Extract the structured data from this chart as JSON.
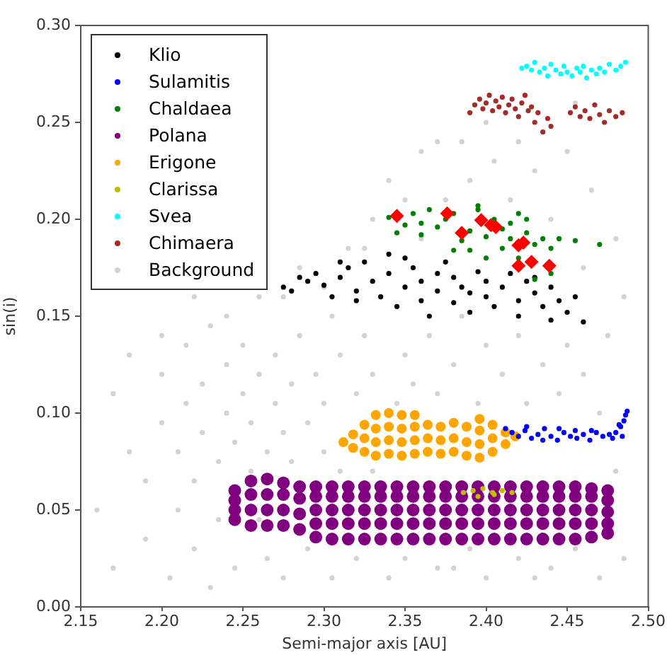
{
  "chart_data": {
    "type": "scatter",
    "xlabel": "Semi-major axis [AU]",
    "ylabel": "sin(i)",
    "xlim": [
      2.15,
      2.5
    ],
    "ylim": [
      0,
      0.3
    ],
    "xticks": [
      2.15,
      {
        "value": 2.2,
        "label": "2.20"
      },
      2.25,
      {
        "value": 2.3,
        "label": "2.30"
      },
      2.35,
      {
        "value": 2.4,
        "label": "2.40"
      },
      2.45,
      {
        "value": 2.5,
        "label": "2.50"
      }
    ],
    "yticks": [
      {
        "value": 0,
        "label": "0.00"
      },
      0.05,
      {
        "value": 0.1,
        "label": "0.10"
      },
      0.15,
      {
        "value": 0.2,
        "label": "0.20"
      },
      0.25,
      {
        "value": 0.3,
        "label": "0.30"
      }
    ],
    "grid": false,
    "legend": "top left",
    "marker": "circle",
    "series": [
      {
        "name": "Klio",
        "color": "#000000",
        "x": [
          2.275,
          2.28,
          2.29,
          2.295,
          2.3,
          2.305,
          2.31,
          2.315,
          2.32,
          2.32,
          2.325,
          2.33,
          2.335,
          2.34,
          2.34,
          2.345,
          2.35,
          2.355,
          2.36,
          2.36,
          2.365,
          2.37,
          2.375,
          2.38,
          2.38,
          2.385,
          2.39,
          2.395,
          2.4,
          2.4,
          2.405,
          2.41,
          2.415,
          2.42,
          2.42,
          2.425,
          2.43,
          2.435,
          2.44,
          2.44,
          2.445,
          2.45,
          2.455,
          2.46,
          2.285,
          2.31,
          2.35,
          2.39,
          2.43,
          2.37
        ],
        "values": [
          0.165,
          0.163,
          0.168,
          0.172,
          0.166,
          0.16,
          0.17,
          0.175,
          0.163,
          0.158,
          0.178,
          0.168,
          0.16,
          0.182,
          0.172,
          0.155,
          0.165,
          0.175,
          0.158,
          0.168,
          0.15,
          0.163,
          0.178,
          0.157,
          0.17,
          0.165,
          0.152,
          0.173,
          0.16,
          0.168,
          0.155,
          0.165,
          0.172,
          0.158,
          0.15,
          0.168,
          0.162,
          0.155,
          0.165,
          0.148,
          0.158,
          0.152,
          0.16,
          0.147,
          0.17,
          0.178,
          0.18,
          0.162,
          0.17,
          0.172
        ]
      },
      {
        "name": "Sulamitis",
        "color": "#0000ff",
        "x": [
          2.412,
          2.416,
          2.42,
          2.424,
          2.428,
          2.432,
          2.436,
          2.44,
          2.444,
          2.448,
          2.452,
          2.456,
          2.46,
          2.464,
          2.468,
          2.472,
          2.476,
          2.48,
          2.483,
          2.485,
          2.486,
          2.487,
          2.484,
          2.425,
          2.445,
          2.465,
          2.478,
          2.435,
          2.455,
          2.482
        ],
        "values": [
          0.092,
          0.09,
          0.088,
          0.091,
          0.087,
          0.089,
          0.092,
          0.088,
          0.086,
          0.09,
          0.088,
          0.087,
          0.089,
          0.086,
          0.09,
          0.088,
          0.089,
          0.09,
          0.093,
          0.096,
          0.099,
          0.101,
          0.088,
          0.093,
          0.092,
          0.091,
          0.087,
          0.086,
          0.091,
          0.094
        ]
      },
      {
        "name": "Chaldaea",
        "color": "#008000",
        "x": [
          2.34,
          2.345,
          2.35,
          2.355,
          2.36,
          2.365,
          2.37,
          2.375,
          2.38,
          2.385,
          2.39,
          2.39,
          2.395,
          2.4,
          2.4,
          2.405,
          2.41,
          2.41,
          2.415,
          2.42,
          2.42,
          2.425,
          2.43,
          2.43,
          2.435,
          2.44,
          2.44,
          2.445,
          2.455,
          2.47,
          2.36,
          2.38,
          2.395,
          2.415,
          2.425
        ],
        "values": [
          0.201,
          0.193,
          0.197,
          0.203,
          0.198,
          0.205,
          0.196,
          0.2,
          0.203,
          0.189,
          0.194,
          0.184,
          0.207,
          0.191,
          0.18,
          0.2,
          0.195,
          0.185,
          0.19,
          0.203,
          0.18,
          0.193,
          0.187,
          0.169,
          0.19,
          0.185,
          0.172,
          0.19,
          0.189,
          0.187,
          0.192,
          0.184,
          0.205,
          0.198,
          0.2
        ]
      },
      {
        "name": "Polana",
        "color": "#800080",
        "x": [
          2.245,
          2.245,
          2.245,
          2.245,
          2.255,
          2.255,
          2.255,
          2.255,
          2.265,
          2.265,
          2.265,
          2.265,
          2.275,
          2.275,
          2.275,
          2.275,
          2.285,
          2.285,
          2.285,
          2.285,
          2.295,
          2.295,
          2.295,
          2.295,
          2.295,
          2.305,
          2.305,
          2.305,
          2.305,
          2.305,
          2.315,
          2.315,
          2.315,
          2.315,
          2.315,
          2.325,
          2.325,
          2.325,
          2.325,
          2.325,
          2.335,
          2.335,
          2.335,
          2.335,
          2.335,
          2.345,
          2.345,
          2.345,
          2.345,
          2.345,
          2.355,
          2.355,
          2.355,
          2.355,
          2.355,
          2.365,
          2.365,
          2.365,
          2.365,
          2.365,
          2.375,
          2.375,
          2.375,
          2.375,
          2.375,
          2.385,
          2.385,
          2.385,
          2.385,
          2.385,
          2.395,
          2.395,
          2.395,
          2.395,
          2.395,
          2.405,
          2.405,
          2.405,
          2.405,
          2.405,
          2.415,
          2.415,
          2.415,
          2.415,
          2.415,
          2.425,
          2.425,
          2.425,
          2.425,
          2.425,
          2.435,
          2.435,
          2.435,
          2.435,
          2.435,
          2.445,
          2.445,
          2.445,
          2.445,
          2.445,
          2.455,
          2.455,
          2.455,
          2.455,
          2.455,
          2.465,
          2.465,
          2.465,
          2.465,
          2.465,
          2.475,
          2.475,
          2.475,
          2.475,
          2.475
        ],
        "values": [
          0.045,
          0.05,
          0.055,
          0.06,
          0.042,
          0.05,
          0.058,
          0.065,
          0.042,
          0.05,
          0.058,
          0.066,
          0.042,
          0.05,
          0.058,
          0.064,
          0.04,
          0.048,
          0.056,
          0.062,
          0.036,
          0.043,
          0.05,
          0.057,
          0.062,
          0.035,
          0.043,
          0.05,
          0.057,
          0.062,
          0.035,
          0.043,
          0.05,
          0.057,
          0.062,
          0.035,
          0.043,
          0.05,
          0.057,
          0.062,
          0.035,
          0.043,
          0.05,
          0.057,
          0.062,
          0.035,
          0.043,
          0.05,
          0.057,
          0.062,
          0.035,
          0.043,
          0.05,
          0.057,
          0.062,
          0.035,
          0.043,
          0.05,
          0.057,
          0.062,
          0.035,
          0.043,
          0.05,
          0.057,
          0.062,
          0.035,
          0.043,
          0.05,
          0.057,
          0.062,
          0.035,
          0.043,
          0.05,
          0.057,
          0.062,
          0.035,
          0.043,
          0.05,
          0.057,
          0.062,
          0.035,
          0.043,
          0.05,
          0.057,
          0.062,
          0.035,
          0.043,
          0.05,
          0.057,
          0.062,
          0.035,
          0.043,
          0.05,
          0.057,
          0.062,
          0.035,
          0.043,
          0.05,
          0.057,
          0.062,
          0.035,
          0.043,
          0.05,
          0.057,
          0.062,
          0.036,
          0.043,
          0.05,
          0.057,
          0.061,
          0.038,
          0.043,
          0.049,
          0.055,
          0.06
        ]
      },
      {
        "name": "Erigone",
        "color": "#ffa500",
        "x": [
          2.312,
          2.318,
          2.318,
          2.325,
          2.325,
          2.325,
          2.332,
          2.332,
          2.332,
          2.332,
          2.34,
          2.34,
          2.34,
          2.34,
          2.348,
          2.348,
          2.348,
          2.348,
          2.356,
          2.356,
          2.356,
          2.356,
          2.364,
          2.364,
          2.364,
          2.372,
          2.372,
          2.372,
          2.38,
          2.38,
          2.38,
          2.388,
          2.388,
          2.388,
          2.396,
          2.396,
          2.396,
          2.396,
          2.404,
          2.404,
          2.404,
          2.412,
          2.412,
          2.418
        ],
        "values": [
          0.085,
          0.082,
          0.089,
          0.08,
          0.087,
          0.094,
          0.078,
          0.085,
          0.092,
          0.099,
          0.079,
          0.086,
          0.093,
          0.1,
          0.078,
          0.085,
          0.092,
          0.099,
          0.079,
          0.086,
          0.093,
          0.099,
          0.08,
          0.087,
          0.094,
          0.079,
          0.086,
          0.093,
          0.08,
          0.087,
          0.095,
          0.078,
          0.085,
          0.093,
          0.077,
          0.084,
          0.091,
          0.097,
          0.08,
          0.087,
          0.094,
          0.084,
          0.09,
          0.088
        ]
      },
      {
        "name": "Clarissa",
        "color": "#bfbf00",
        "x": [
          2.386,
          2.392,
          2.398,
          2.404,
          2.41,
          2.416,
          2.395,
          2.405
        ],
        "values": [
          0.059,
          0.06,
          0.061,
          0.059,
          0.06,
          0.059,
          0.057,
          0.058
        ]
      },
      {
        "name": "Svea",
        "color": "#00ffff",
        "x": [
          2.422,
          2.425,
          2.428,
          2.43,
          2.433,
          2.436,
          2.438,
          2.44,
          2.443,
          2.446,
          2.448,
          2.45,
          2.453,
          2.456,
          2.458,
          2.46,
          2.462,
          2.465,
          2.468,
          2.47,
          2.473,
          2.476,
          2.48,
          2.483,
          2.486
        ],
        "values": [
          0.278,
          0.279,
          0.277,
          0.281,
          0.276,
          0.278,
          0.274,
          0.28,
          0.277,
          0.275,
          0.279,
          0.276,
          0.274,
          0.278,
          0.276,
          0.279,
          0.273,
          0.277,
          0.275,
          0.278,
          0.276,
          0.28,
          0.277,
          0.279,
          0.281
        ]
      },
      {
        "name": "Chimaera",
        "color": "#a52a2a",
        "x": [
          2.39,
          2.393,
          2.396,
          2.398,
          2.4,
          2.402,
          2.404,
          2.406,
          2.408,
          2.41,
          2.412,
          2.414,
          2.416,
          2.418,
          2.42,
          2.422,
          2.424,
          2.426,
          2.428,
          2.43,
          2.432,
          2.435,
          2.438,
          2.44,
          2.452,
          2.455,
          2.458,
          2.461,
          2.464,
          2.467,
          2.47,
          2.473,
          2.476,
          2.48,
          2.484
        ],
        "values": [
          0.255,
          0.259,
          0.262,
          0.257,
          0.26,
          0.264,
          0.256,
          0.261,
          0.258,
          0.263,
          0.255,
          0.259,
          0.262,
          0.257,
          0.253,
          0.26,
          0.264,
          0.256,
          0.258,
          0.25,
          0.255,
          0.245,
          0.252,
          0.248,
          0.255,
          0.258,
          0.253,
          0.256,
          0.252,
          0.259,
          0.254,
          0.25,
          0.256,
          0.253,
          0.255
        ]
      },
      {
        "name": "Background",
        "color": "#d3d3d3",
        "x": [
          2.17,
          2.16,
          2.18,
          2.17,
          2.19,
          2.19,
          2.2,
          2.2,
          2.205,
          2.21,
          2.21,
          2.215,
          2.215,
          2.22,
          2.22,
          2.225,
          2.225,
          2.23,
          2.23,
          2.235,
          2.235,
          2.24,
          2.24,
          2.245,
          2.245,
          2.25,
          2.25,
          2.255,
          2.255,
          2.26,
          2.26,
          2.265,
          2.265,
          2.27,
          2.27,
          2.275,
          2.275,
          2.28,
          2.28,
          2.285,
          2.285,
          2.29,
          2.29,
          2.295,
          2.3,
          2.3,
          2.305,
          2.305,
          2.31,
          2.31,
          2.315,
          2.32,
          2.32,
          2.325,
          2.33,
          2.33,
          2.335,
          2.34,
          2.34,
          2.345,
          2.35,
          2.35,
          2.355,
          2.36,
          2.36,
          2.365,
          2.37,
          2.37,
          2.375,
          2.38,
          2.385,
          2.385,
          2.39,
          2.39,
          2.395,
          2.4,
          2.4,
          2.405,
          2.41,
          2.415,
          2.42,
          2.42,
          2.425,
          2.43,
          2.435,
          2.44,
          2.44,
          2.445,
          2.45,
          2.45,
          2.455,
          2.46,
          2.46,
          2.465,
          2.47,
          2.47,
          2.475,
          2.48,
          2.48,
          2.485,
          2.485,
          2.33,
          2.35,
          2.37,
          2.4,
          2.42,
          2.455,
          2.325,
          2.38,
          2.43,
          2.26,
          2.2,
          2.18,
          2.24,
          2.3,
          2.22,
          2.275
        ],
        "values": [
          0.02,
          0.05,
          0.08,
          0.11,
          0.035,
          0.065,
          0.095,
          0.12,
          0.015,
          0.05,
          0.08,
          0.105,
          0.135,
          0.03,
          0.065,
          0.09,
          0.115,
          0.145,
          0.01,
          0.045,
          0.075,
          0.1,
          0.125,
          0.02,
          0.085,
          0.11,
          0.135,
          0.07,
          0.095,
          0.12,
          0.16,
          0.025,
          0.08,
          0.105,
          0.13,
          0.015,
          0.09,
          0.075,
          0.115,
          0.14,
          0.175,
          0.03,
          0.095,
          0.12,
          0.08,
          0.105,
          0.015,
          0.15,
          0.07,
          0.13,
          0.185,
          0.025,
          0.11,
          0.14,
          0.07,
          0.12,
          0.16,
          0.015,
          0.22,
          0.105,
          0.13,
          0.025,
          0.115,
          0.19,
          0.235,
          0.14,
          0.02,
          0.11,
          0.21,
          0.125,
          0.15,
          0.24,
          0.03,
          0.22,
          0.105,
          0.135,
          0.015,
          0.23,
          0.12,
          0.21,
          0.025,
          0.14,
          0.105,
          0.225,
          0.125,
          0.02,
          0.2,
          0.11,
          0.135,
          0.235,
          0.03,
          0.175,
          0.12,
          0.215,
          0.015,
          0.1,
          0.14,
          0.19,
          0.07,
          0.025,
          0.16,
          0.2,
          0.21,
          0.24,
          0.25,
          0.24,
          0.26,
          0.185,
          0.02,
          0.015,
          0.045,
          0.14,
          0.13,
          0.15,
          0.165,
          0.16,
          0.16
        ]
      },
      {
        "color": "#ff0000",
        "marker": "diamond",
        "x": [
          2.345,
          2.376,
          2.385,
          2.397,
          2.403,
          2.406,
          2.42,
          2.423,
          2.42,
          2.428,
          2.439
        ],
        "values": [
          0.2017,
          0.203,
          0.193,
          0.1995,
          0.197,
          0.196,
          0.1866,
          0.188,
          0.176,
          0.178,
          0.176
        ]
      }
    ]
  }
}
